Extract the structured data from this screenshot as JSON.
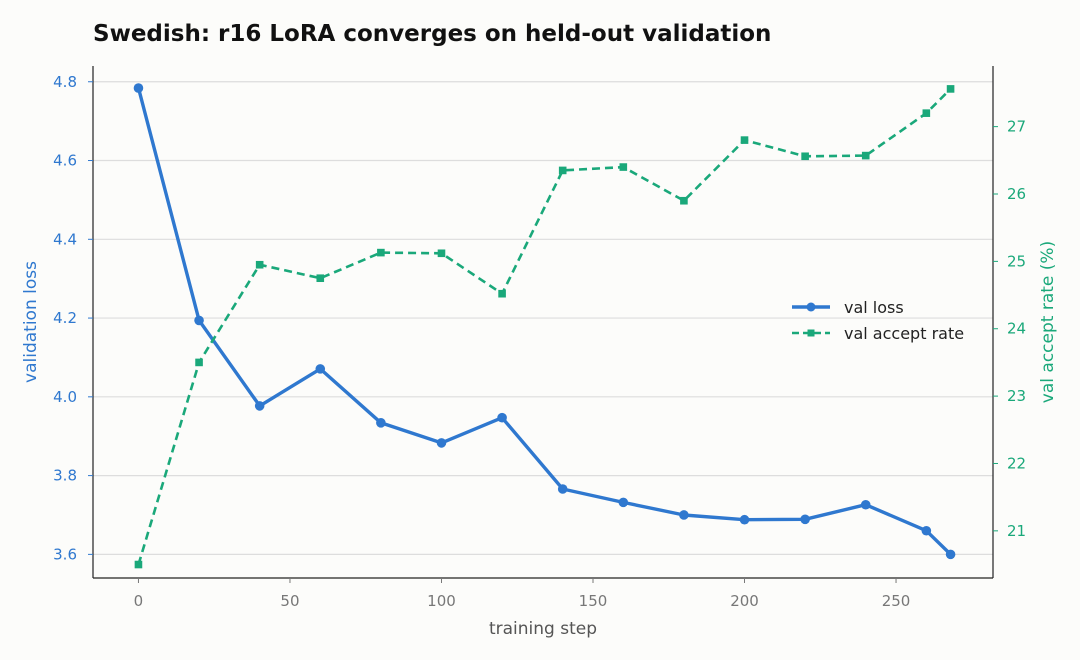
{
  "chart_data": {
    "type": "line",
    "title": "Swedish: r16 LoRA converges on held-out validation",
    "xlabel": "training step",
    "ylabel_left": "validation loss",
    "ylabel_right": "val accept rate (%)",
    "xlim": [
      -15,
      282
    ],
    "ylim_left": [
      3.54,
      4.84
    ],
    "ylim_right": [
      20.3,
      27.9
    ],
    "x_ticks": [
      0,
      50,
      100,
      150,
      200,
      250
    ],
    "y_ticks_left": [
      3.6,
      3.8,
      4.0,
      4.2,
      4.4,
      4.6,
      4.8
    ],
    "y_ticks_right": [
      21,
      22,
      23,
      24,
      25,
      26,
      27
    ],
    "grid": "horizontal-left-axis",
    "legend_position": "center-right",
    "series": [
      {
        "name": "val loss",
        "axis": "left",
        "color": "#2f78cf",
        "line_style": "solid",
        "marker": "circle",
        "points": [
          [
            0,
            4.784
          ],
          [
            20,
            4.194
          ],
          [
            40,
            3.977
          ],
          [
            60,
            4.071
          ],
          [
            80,
            3.934
          ],
          [
            100,
            3.883
          ],
          [
            120,
            3.947
          ],
          [
            140,
            3.766
          ],
          [
            160,
            3.732
          ],
          [
            180,
            3.7
          ],
          [
            200,
            3.688
          ],
          [
            220,
            3.689
          ],
          [
            240,
            3.726
          ],
          [
            260,
            3.66
          ],
          [
            268,
            3.6
          ]
        ]
      },
      {
        "name": "val accept rate",
        "axis": "right",
        "color": "#1aa87a",
        "line_style": "dashed",
        "marker": "square",
        "points": [
          [
            0,
            20.5
          ],
          [
            20,
            23.5
          ],
          [
            40,
            24.95
          ],
          [
            60,
            24.75
          ],
          [
            80,
            25.13
          ],
          [
            100,
            25.12
          ],
          [
            120,
            24.52
          ],
          [
            140,
            26.35
          ],
          [
            160,
            26.4
          ],
          [
            180,
            25.9
          ],
          [
            200,
            26.8
          ],
          [
            220,
            26.56
          ],
          [
            240,
            26.57
          ],
          [
            260,
            27.2
          ],
          [
            268,
            27.56
          ]
        ]
      }
    ]
  }
}
